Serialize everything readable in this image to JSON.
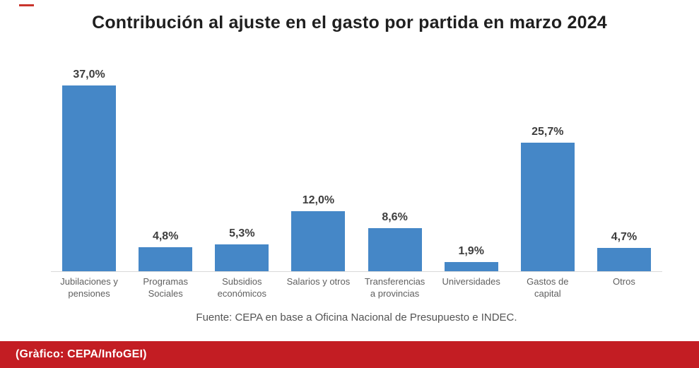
{
  "accents": {
    "top_dash_color": "#c9342c"
  },
  "chart_data": {
    "type": "bar",
    "title": "Contribución al ajuste en el gasto por partida en marzo 2024",
    "categories": [
      "Jubilaciones y pensiones",
      "Programas Sociales",
      "Subsidios económicos",
      "Salarios y otros",
      "Transferencias a provincias",
      "Universidades",
      "Gastos de capital",
      "Otros"
    ],
    "category_lines": [
      [
        "Jubilaciones y",
        "pensiones"
      ],
      [
        "Programas",
        "Sociales"
      ],
      [
        "Subsidios",
        "económicos"
      ],
      [
        "Salarios y otros"
      ],
      [
        "Transferencias",
        "a provincias"
      ],
      [
        "Universidades"
      ],
      [
        "Gastos de",
        "capital"
      ],
      [
        "Otros"
      ]
    ],
    "values": [
      37.0,
      4.8,
      5.3,
      12.0,
      8.6,
      1.9,
      25.7,
      4.7
    ],
    "value_labels": [
      "37,0%",
      "4,8%",
      "5,3%",
      "12,0%",
      "8,6%",
      "1,9%",
      "25,7%",
      "4,7%"
    ],
    "unit": "%",
    "bar_color": "#4587c7",
    "axis_line_color": "#d9d9d9",
    "ylim": [
      0,
      40
    ],
    "grid": false,
    "legend_position": "none",
    "xlabel": "",
    "ylabel": "",
    "source_note": "Fuente: CEPA en base a Oficina Nacional de Presupuesto e INDEC."
  },
  "credit_bar": {
    "text": "(Gràfico: CEPA/InfoGEI)",
    "background_color": "#c31d23",
    "text_color": "#ffffff"
  }
}
